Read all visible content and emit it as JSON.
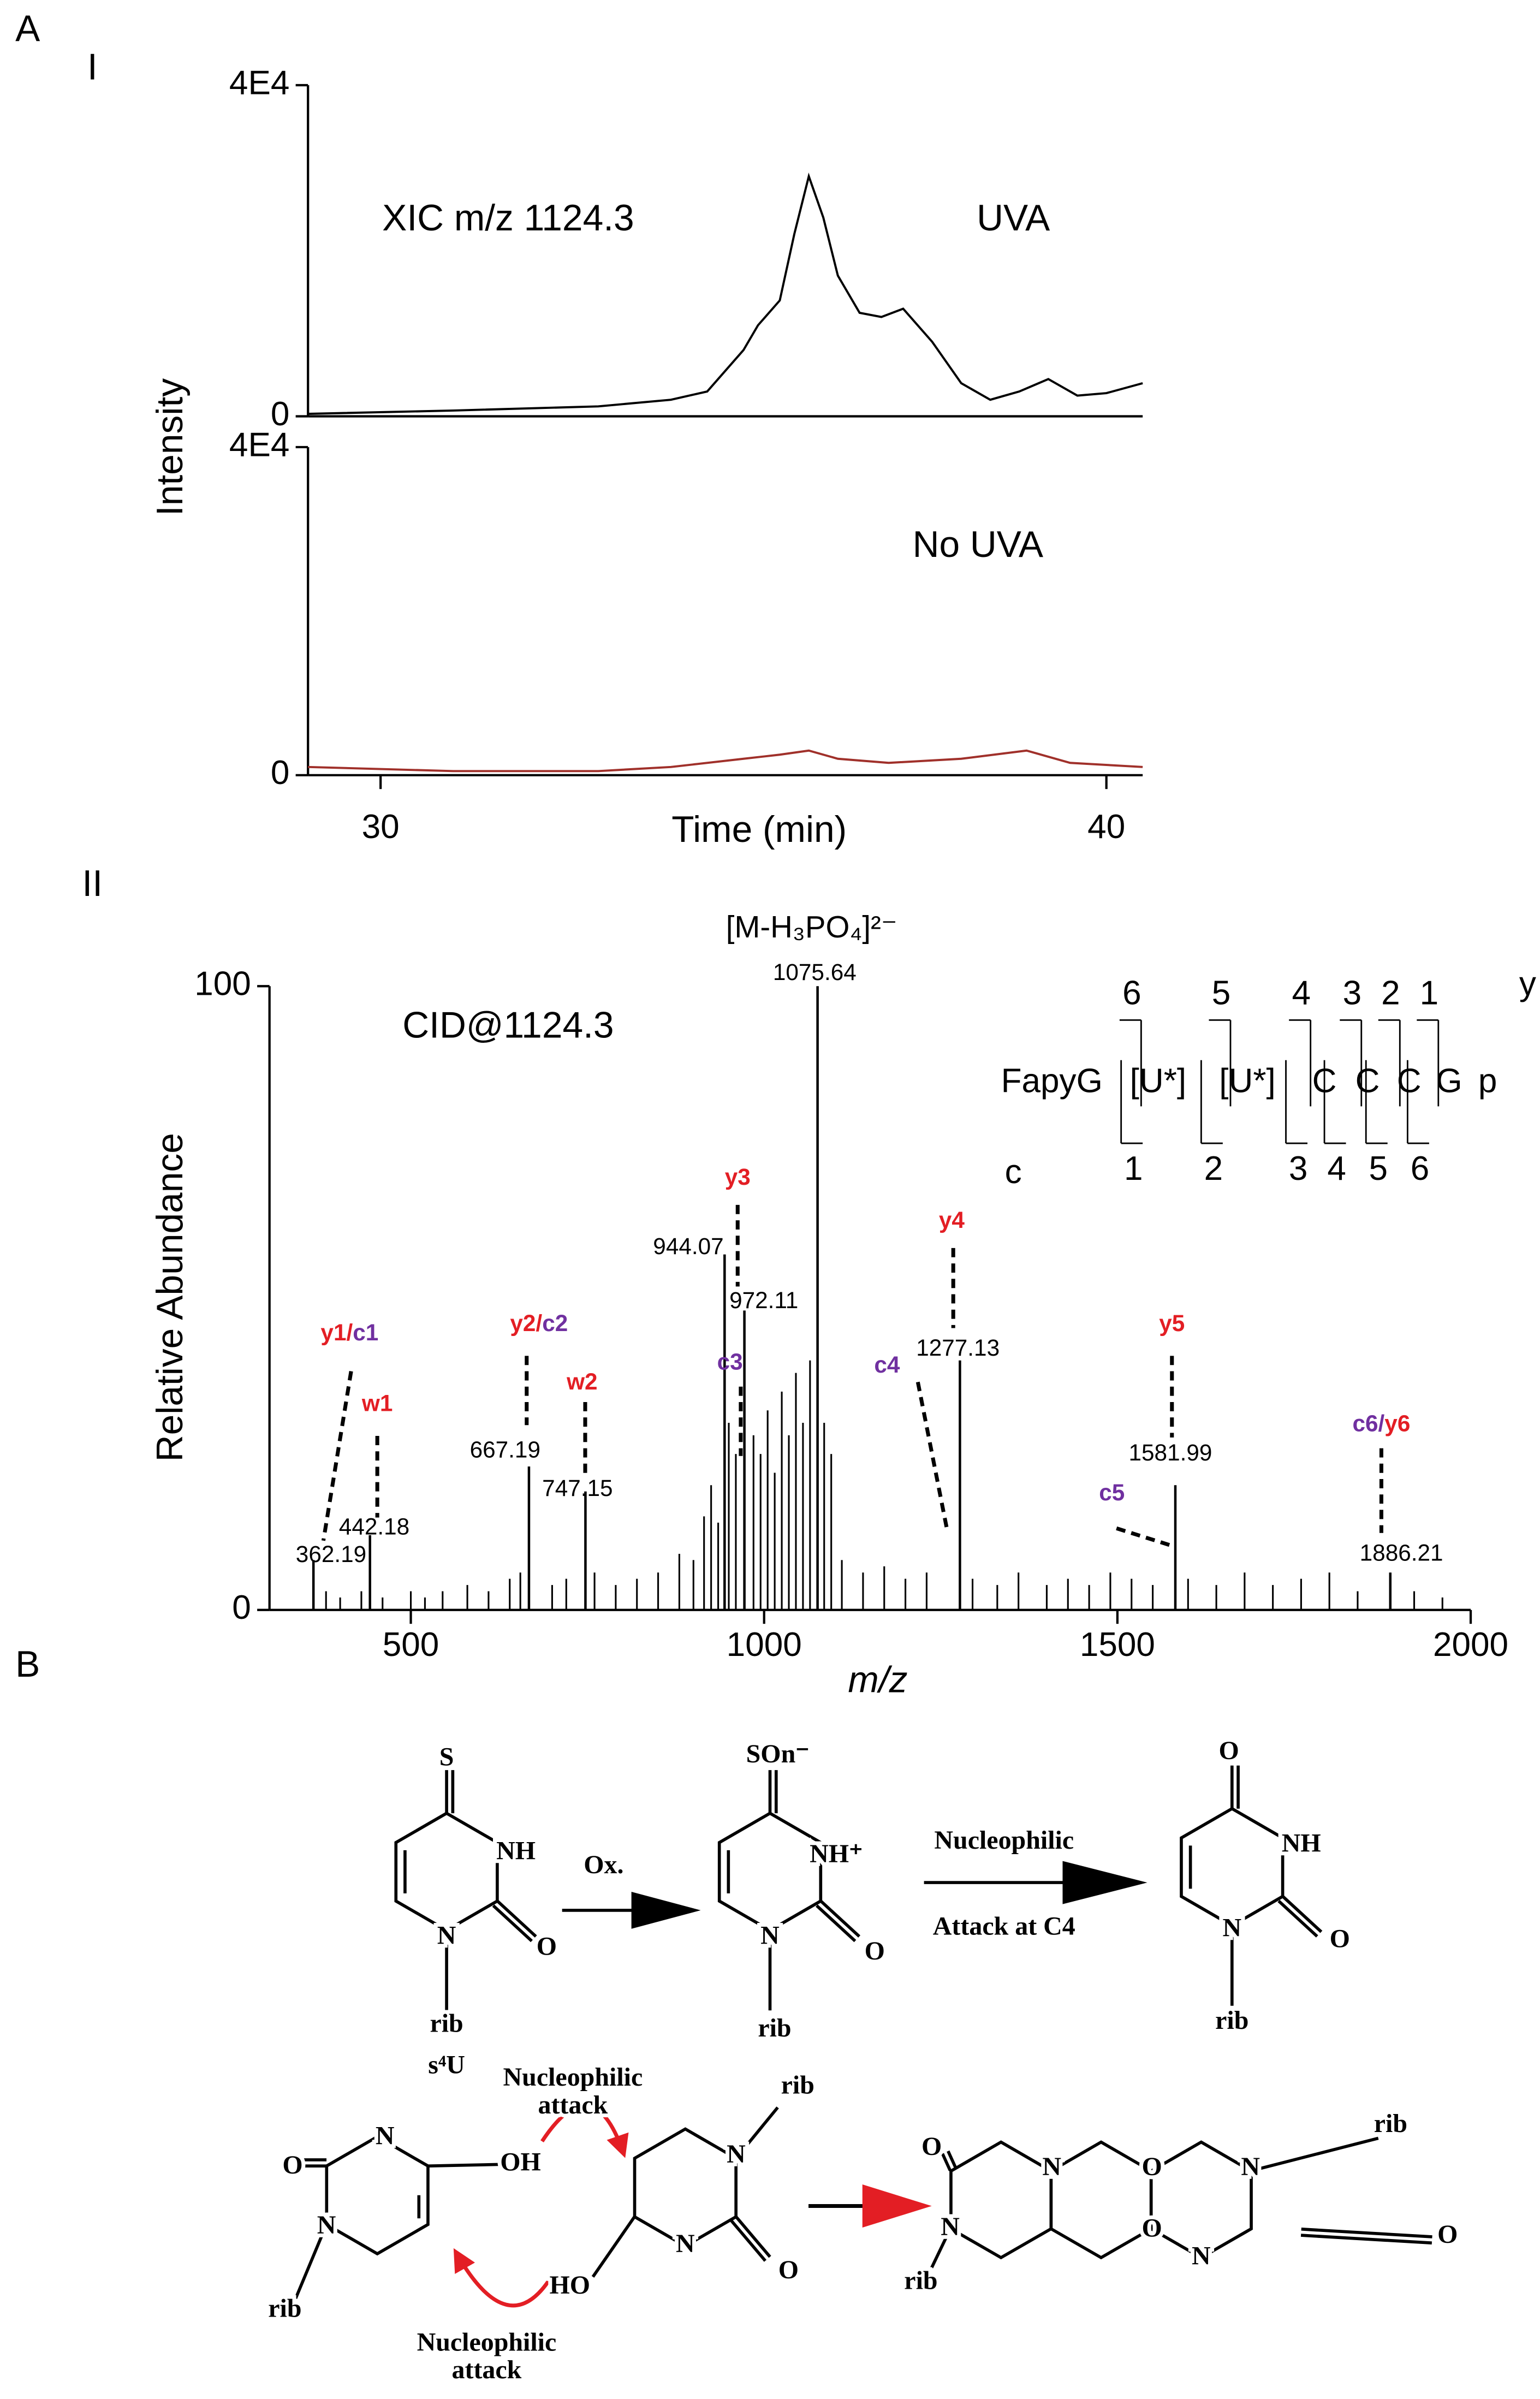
{
  "labels": [
    "A",
    "I",
    "II"
  ],
  "chart_data": [
    {
      "type": "line",
      "annotations": [
        "XIC m/z 1124.3",
        "UVA"
      ],
      "ylabel": "Intensity",
      "xlim": [
        29,
        40.5
      ],
      "ylim": [
        0,
        40000
      ],
      "yticks": [
        0,
        {
          "value": 40000,
          "label": "4E4"
        }
      ],
      "color": "#000000",
      "x": [
        29.0,
        31.0,
        33.0,
        34.0,
        34.5,
        35.0,
        35.2,
        35.5,
        35.7,
        35.9,
        36.1,
        36.3,
        36.6,
        36.9,
        37.2,
        37.6,
        38.0,
        38.4,
        38.8,
        39.2,
        39.6,
        40.0,
        40.5
      ],
      "values": [
        300,
        700,
        1200,
        2000,
        3000,
        8000,
        11000,
        14000,
        22000,
        29000,
        24000,
        17000,
        12500,
        12000,
        13000,
        9000,
        4000,
        2000,
        3000,
        4500,
        2500,
        2800,
        4000
      ]
    },
    {
      "type": "line",
      "annotations": [
        "No UVA"
      ],
      "xlabel": "Time (min)",
      "xlim": [
        29,
        40.5
      ],
      "ylim": [
        0,
        40000
      ],
      "yticks": [
        0,
        {
          "value": 40000,
          "label": "4E4"
        }
      ],
      "xticks": [
        30,
        40
      ],
      "color": "#a0302a",
      "x": [
        29.0,
        31.0,
        33.0,
        34.0,
        35.0,
        35.5,
        35.9,
        36.3,
        37.0,
        38.0,
        38.9,
        39.5,
        40.5
      ],
      "values": [
        1000,
        500,
        500,
        1000,
        2000,
        2500,
        3000,
        2000,
        1500,
        2000,
        3000,
        1500,
        1000
      ]
    },
    {
      "type": "spectrum",
      "title": "CID@1124.3",
      "precursor_label": "[M-H₃PO₄]²⁻",
      "xlabel": "m/z",
      "ylabel": "Relative Abundance",
      "xlim": [
        300,
        2000
      ],
      "ylim": [
        0,
        100
      ],
      "xticks": [
        500,
        1000,
        1500,
        2000
      ],
      "yticks": [
        0,
        100
      ],
      "color": "#000000",
      "series": [
        {
          "x": [
            362.19,
            442.18,
            667.19,
            747.15,
            944.07,
            972.11,
            1075.64,
            1277.13,
            1581.99,
            1886.21
          ],
          "values": [
            8,
            12,
            23,
            19,
            57,
            48,
            100,
            40,
            20,
            6
          ]
        },
        {
          "x": [
            380,
            400,
            430,
            460,
            500,
            520,
            545,
            580,
            610,
            640,
            655,
            700,
            720,
            760,
            790,
            820,
            850,
            880,
            900,
            915,
            925,
            935,
            950,
            960,
            985,
            995,
            1005,
            1015,
            1025,
            1035,
            1045,
            1055,
            1065,
            1085,
            1095,
            1110,
            1140,
            1170,
            1200,
            1230,
            1295,
            1330,
            1360,
            1400,
            1430,
            1460,
            1490,
            1520,
            1550,
            1600,
            1640,
            1680,
            1720,
            1760,
            1800,
            1840,
            1920,
            1960
          ],
          "values": [
            3,
            2,
            3,
            2,
            3,
            2,
            3,
            4,
            3,
            5,
            6,
            4,
            5,
            6,
            4,
            5,
            6,
            9,
            8,
            15,
            20,
            14,
            30,
            25,
            28,
            25,
            32,
            22,
            35,
            28,
            38,
            30,
            40,
            30,
            25,
            8,
            6,
            7,
            5,
            6,
            5,
            4,
            6,
            4,
            5,
            4,
            6,
            5,
            4,
            5,
            4,
            6,
            4,
            5,
            6,
            3,
            3,
            2
          ]
        }
      ],
      "fragments": [
        {
          "parts": [
            {
              "text": "y1/",
              "color": "#e31e24"
            },
            {
              "text": "c1",
              "color": "#7030a0"
            }
          ],
          "color": "#7030a0"
        },
        {
          "parts": [
            {
              "text": "w1",
              "color": "#e31e24"
            }
          ],
          "color": "#e31e24"
        },
        {
          "parts": [
            {
              "text": "y2/",
              "color": "#e31e24"
            },
            {
              "text": "c2",
              "color": "#7030a0"
            }
          ],
          "color": "#7030a0"
        },
        {
          "parts": [
            {
              "text": "w2",
              "color": "#e31e24"
            }
          ],
          "color": "#e31e24"
        },
        {
          "parts": [
            {
              "text": "y3",
              "color": "#e31e24"
            }
          ],
          "color": "#e31e24"
        },
        {
          "parts": [
            {
              "text": "c3",
              "color": "#7030a0"
            }
          ],
          "color": "#7030a0"
        },
        {
          "parts": [
            {
              "text": "y4",
              "color": "#e31e24"
            }
          ],
          "color": "#e31e24"
        },
        {
          "parts": [
            {
              "text": "c4",
              "color": "#7030a0"
            }
          ],
          "color": "#7030a0"
        },
        {
          "parts": [
            {
              "text": "y5",
              "color": "#e31e24"
            }
          ],
          "color": "#e31e24"
        },
        {
          "parts": [
            {
              "text": "c5",
              "color": "#7030a0"
            }
          ],
          "color": "#7030a0"
        },
        {
          "parts": [
            {
              "text": "c6/",
              "color": "#7030a0"
            },
            {
              "text": "y6",
              "color": "#e31e24"
            }
          ],
          "color": "#7030a0"
        }
      ],
      "sequence": {
        "residues": [
          "FapyG",
          "[U*]",
          "[U*]",
          "C",
          "C",
          "C",
          "G",
          "p"
        ],
        "y_label": "y",
        "y_numbers": [
          6,
          5,
          4,
          3,
          2,
          1
        ],
        "c_label": "c",
        "c_numbers": [
          1,
          2,
          3,
          4,
          5,
          6
        ]
      }
    }
  ],
  "scheme": {
    "label": "B",
    "texts": [
      {
        "text": "S",
        "color": "#e31e24"
      },
      "NH",
      "O",
      "N",
      "rib",
      {
        "text": "s⁴U",
        "color": "#e31e24"
      },
      "Ox.",
      {
        "text": "SOn⁻",
        "color": "#e31e24"
      },
      "NH⁺",
      "O",
      "N",
      "rib",
      "Nucleophilic",
      "Attack at C4",
      {
        "text": "O",
        "color": "#e31e24"
      },
      "NH",
      "O",
      "N",
      "rib",
      "O",
      "N",
      "OH",
      "N",
      "rib",
      {
        "text": "Nucleophilic",
        "color": "#e31e24"
      },
      {
        "text": "attack",
        "color": "#e31e24"
      },
      "N",
      "rib",
      "HO",
      "N",
      "O",
      {
        "text": "Nucleophilic",
        "color": "#e31e24"
      },
      {
        "text": "attack",
        "color": "#e31e24"
      },
      "O",
      "N",
      "O",
      "N",
      "rib",
      "O",
      "N",
      "O",
      "N",
      "rib"
    ]
  }
}
